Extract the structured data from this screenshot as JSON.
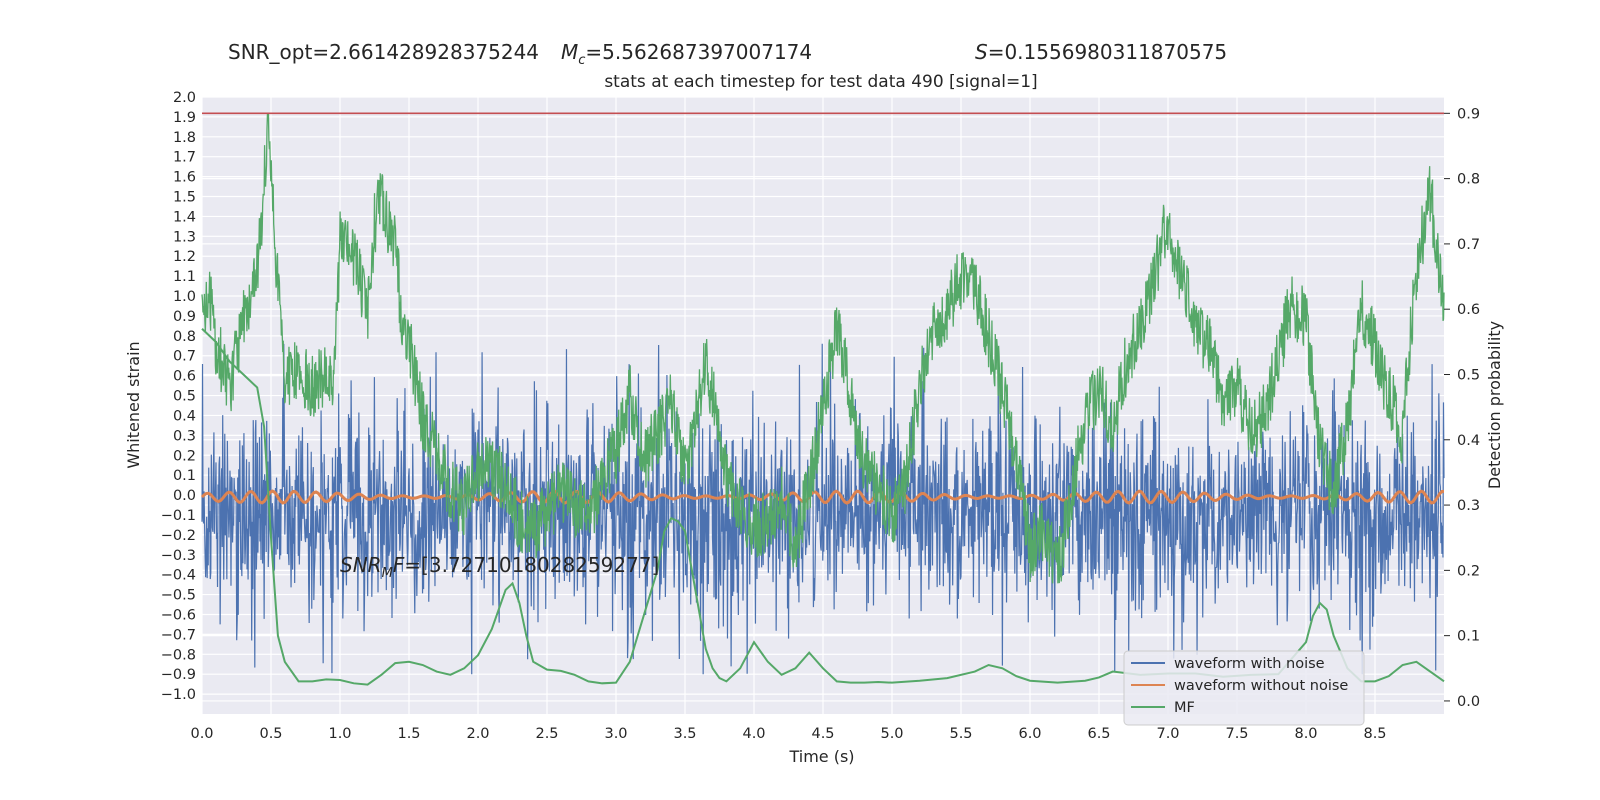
{
  "header": {
    "snr_opt": "SNR_opt=2.661428928375244",
    "mc_symbol": "M",
    "mc_sub": "c",
    "mc_value": "=5.562687397007174",
    "s_symbol": "S",
    "s_value": "=0.1556980311870575",
    "subtitle": "stats at each timestep for test data 490 [signal=1]",
    "snr_mf_symbol": "SNR",
    "snr_mf_sub": "M",
    "snr_mf_tail": "F",
    "snr_mf_value": "=[3.7271018028259277]"
  },
  "chart_data": {
    "type": "line",
    "title": "stats at each timestep for test data 490 [signal=1]",
    "xlabel": "Time (s)",
    "ylabel_left": "Whitened strain",
    "ylabel_right": "Detection probability",
    "xlim": [
      0.0,
      9.0
    ],
    "ylim_left": [
      -1.1,
      2.0
    ],
    "ylim_right": [
      -0.02,
      0.925
    ],
    "x_ticks": [
      "0.0",
      "0.5",
      "1.0",
      "1.5",
      "2.0",
      "2.5",
      "3.0",
      "3.5",
      "4.0",
      "4.5",
      "5.0",
      "5.5",
      "6.0",
      "6.5",
      "7.0",
      "7.5",
      "8.0",
      "8.5"
    ],
    "left_ticks": [
      "2.0",
      "1.9",
      "1.8",
      "1.7",
      "1.6",
      "1.5",
      "1.4",
      "1.3",
      "1.2",
      "1.1",
      "1.0",
      "0.9",
      "0.8",
      "0.7",
      "0.6",
      "0.5",
      "0.4",
      "0.3",
      "0.2",
      "0.1",
      "0.0",
      "−0.1",
      "−0.2",
      "−0.3",
      "−0.4",
      "−0.5",
      "−0.6",
      "−0.7",
      "−0.8",
      "−0.9",
      "−1.0"
    ],
    "right_ticks": [
      "0.9",
      "0.8",
      "0.7",
      "0.6",
      "0.5",
      "0.4",
      "0.3",
      "0.2",
      "0.1",
      "0.0"
    ],
    "threshold": 0.9,
    "grid": true,
    "legend_position": "lower-right",
    "legend": [
      "waveform with noise",
      "waveform without noise",
      "MF"
    ],
    "colors": {
      "noise": "#4c72b0",
      "clean": "#dd8452",
      "mf": "#55a868",
      "threshold": "#c44e52",
      "axes_bg": "#eaeaf2",
      "grid": "#ffffff"
    },
    "series": [
      {
        "name": "MF",
        "axis": "right",
        "x": [
          0.0,
          0.1,
          0.2,
          0.3,
          0.4,
          0.45,
          0.5,
          0.55,
          0.6,
          0.7,
          0.8,
          0.9,
          1.0,
          1.1,
          1.2,
          1.3,
          1.4,
          1.5,
          1.6,
          1.7,
          1.8,
          1.9,
          2.0,
          2.1,
          2.2,
          2.25,
          2.3,
          2.35,
          2.4,
          2.5,
          2.6,
          2.7,
          2.8,
          2.9,
          3.0,
          3.1,
          3.2,
          3.3,
          3.35,
          3.4,
          3.45,
          3.5,
          3.6,
          3.65,
          3.7,
          3.75,
          3.8,
          3.9,
          4.0,
          4.1,
          4.2,
          4.3,
          4.4,
          4.5,
          4.6,
          4.7,
          4.8,
          4.9,
          5.0,
          5.2,
          5.4,
          5.6,
          5.7,
          5.8,
          5.9,
          6.0,
          6.2,
          6.4,
          6.5,
          6.6,
          6.8,
          7.0,
          7.2,
          7.4,
          7.6,
          7.8,
          8.0,
          8.05,
          8.1,
          8.15,
          8.2,
          8.3,
          8.4,
          8.5,
          8.6,
          8.7,
          8.8,
          8.9,
          9.0
        ],
        "values": [
          0.57,
          0.55,
          0.52,
          0.5,
          0.48,
          0.42,
          0.25,
          0.1,
          0.06,
          0.03,
          0.03,
          0.033,
          0.032,
          0.027,
          0.025,
          0.04,
          0.058,
          0.06,
          0.055,
          0.045,
          0.04,
          0.05,
          0.07,
          0.11,
          0.17,
          0.18,
          0.15,
          0.1,
          0.06,
          0.048,
          0.046,
          0.04,
          0.03,
          0.027,
          0.028,
          0.06,
          0.13,
          0.2,
          0.26,
          0.28,
          0.275,
          0.26,
          0.14,
          0.08,
          0.05,
          0.035,
          0.03,
          0.05,
          0.09,
          0.06,
          0.04,
          0.05,
          0.074,
          0.05,
          0.03,
          0.028,
          0.028,
          0.029,
          0.028,
          0.031,
          0.035,
          0.045,
          0.055,
          0.05,
          0.038,
          0.031,
          0.028,
          0.031,
          0.036,
          0.045,
          0.04,
          0.042,
          0.042,
          0.037,
          0.04,
          0.041,
          0.09,
          0.13,
          0.15,
          0.14,
          0.1,
          0.05,
          0.03,
          0.03,
          0.038,
          0.055,
          0.06,
          0.045,
          0.03
        ]
      },
      {
        "name": "waveform with noise",
        "axis": "left",
        "approx_range": [
          -0.9,
          0.8
        ],
        "approx_typical_amplitude": 0.45,
        "approx_mean": -0.08
      },
      {
        "name": "waveform without noise",
        "axis": "left",
        "approx_level": -0.01,
        "approx_amplitude": 0.03
      },
      {
        "name": "Detection probability",
        "axis": "right",
        "x": [
          0.0,
          0.05,
          0.1,
          0.2,
          0.3,
          0.4,
          0.48,
          0.5,
          0.55,
          0.6,
          0.7,
          0.8,
          0.9,
          0.95,
          1.0,
          1.05,
          1.1,
          1.2,
          1.25,
          1.3,
          1.35,
          1.4,
          1.45,
          1.5,
          1.6,
          1.7,
          1.8,
          1.9,
          2.0,
          2.1,
          2.2,
          2.3,
          2.4,
          2.5,
          2.6,
          2.7,
          2.8,
          2.9,
          3.0,
          3.1,
          3.2,
          3.3,
          3.4,
          3.5,
          3.6,
          3.65,
          3.7,
          3.8,
          3.9,
          4.0,
          4.1,
          4.2,
          4.3,
          4.4,
          4.5,
          4.6,
          4.7,
          4.8,
          4.9,
          5.0,
          5.1,
          5.2,
          5.3,
          5.4,
          5.5,
          5.6,
          5.7,
          5.8,
          5.9,
          6.0,
          6.1,
          6.2,
          6.3,
          6.4,
          6.5,
          6.6,
          6.7,
          6.8,
          6.9,
          7.0,
          7.1,
          7.2,
          7.3,
          7.4,
          7.5,
          7.6,
          7.7,
          7.8,
          7.9,
          8.0,
          8.1,
          8.2,
          8.3,
          8.4,
          8.5,
          8.6,
          8.7,
          8.8,
          8.9,
          9.0
        ],
        "values": [
          0.6,
          0.63,
          0.55,
          0.48,
          0.58,
          0.65,
          0.88,
          0.8,
          0.63,
          0.5,
          0.5,
          0.48,
          0.5,
          0.48,
          0.7,
          0.69,
          0.68,
          0.6,
          0.73,
          0.78,
          0.72,
          0.7,
          0.58,
          0.55,
          0.43,
          0.38,
          0.32,
          0.3,
          0.35,
          0.36,
          0.33,
          0.28,
          0.26,
          0.29,
          0.32,
          0.3,
          0.28,
          0.34,
          0.38,
          0.47,
          0.37,
          0.41,
          0.46,
          0.35,
          0.46,
          0.52,
          0.47,
          0.35,
          0.3,
          0.26,
          0.28,
          0.31,
          0.24,
          0.33,
          0.45,
          0.58,
          0.46,
          0.36,
          0.33,
          0.28,
          0.34,
          0.48,
          0.58,
          0.6,
          0.65,
          0.63,
          0.56,
          0.47,
          0.38,
          0.23,
          0.26,
          0.2,
          0.32,
          0.43,
          0.48,
          0.42,
          0.52,
          0.57,
          0.65,
          0.74,
          0.64,
          0.58,
          0.54,
          0.45,
          0.48,
          0.41,
          0.44,
          0.53,
          0.61,
          0.58,
          0.38,
          0.32,
          0.42,
          0.61,
          0.54,
          0.47,
          0.41,
          0.66,
          0.78,
          0.6
        ]
      }
    ],
    "noise_seed": 490
  }
}
